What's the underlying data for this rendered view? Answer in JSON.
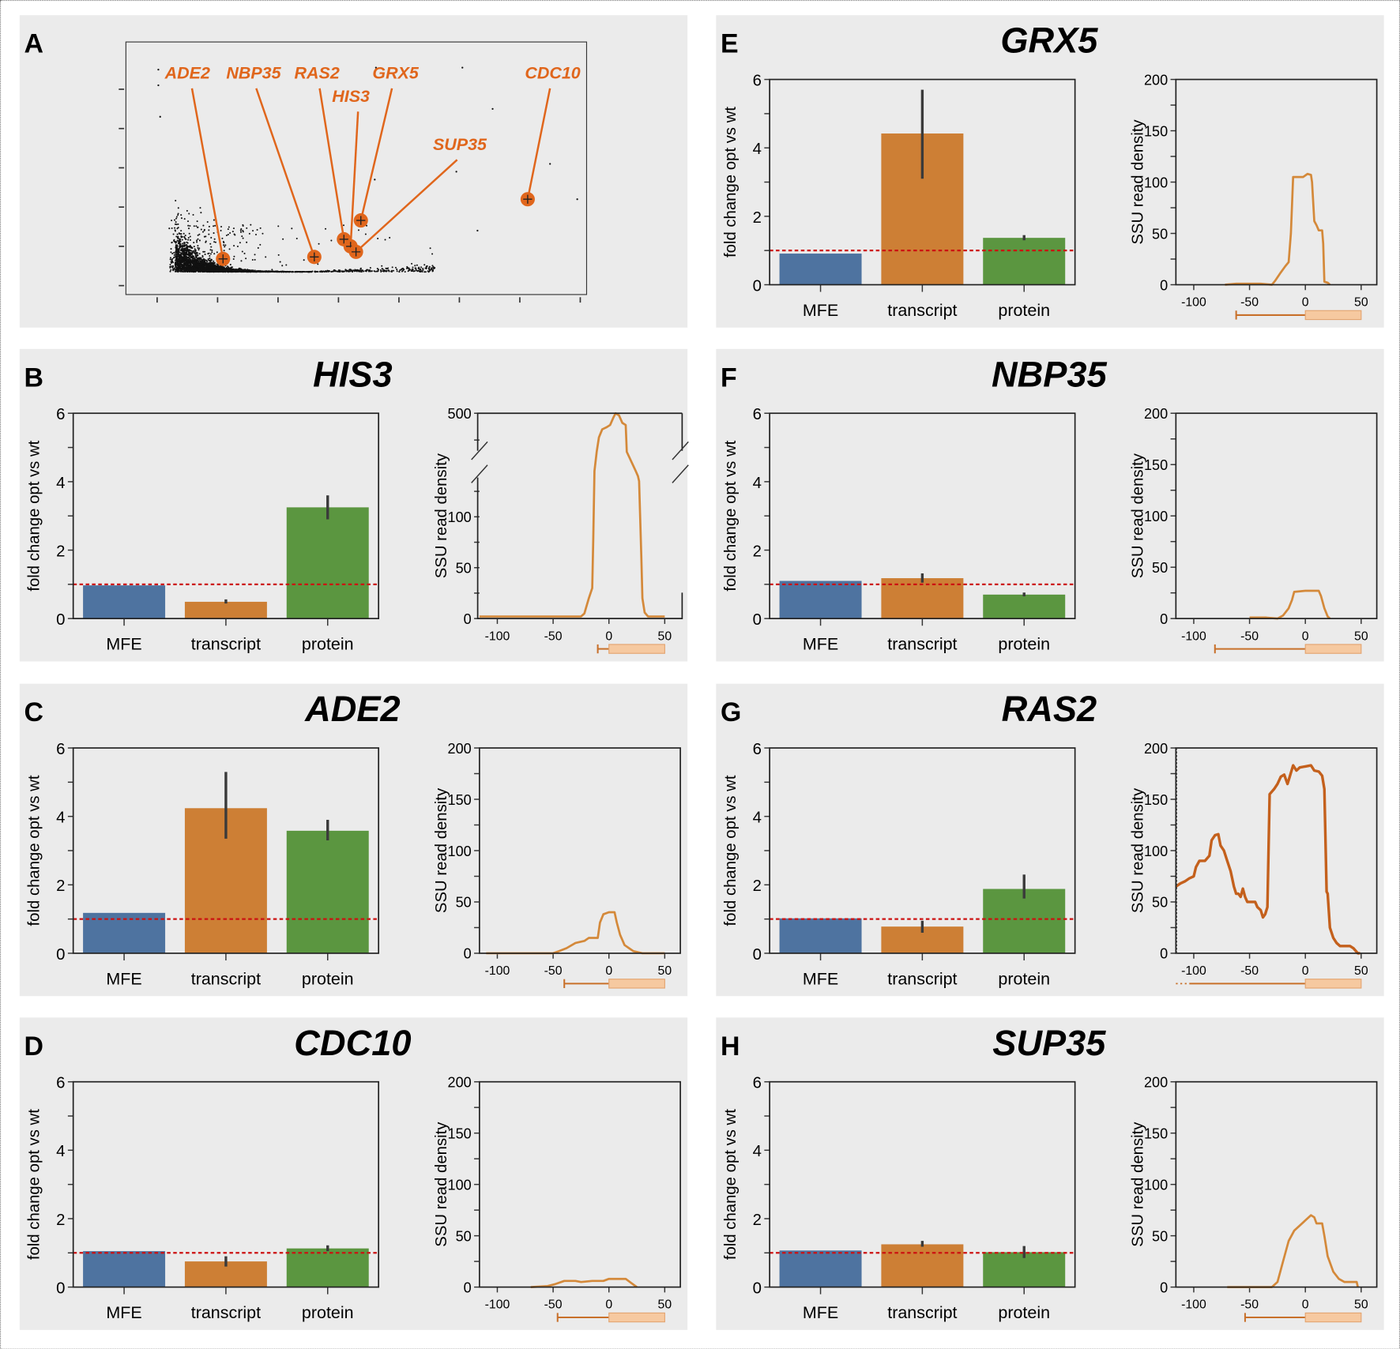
{
  "colors": {
    "panel_bg": "#ebebeb",
    "mfe": "#4e73a0",
    "transcript": "#cd7f35",
    "protein": "#5b9640",
    "reference_line": "#cc1111",
    "trace": "#d4893a",
    "trace_dark": "#c4601c",
    "highlight": "#e0661c",
    "gene_model_line": "#c8702a",
    "gene_model_box": "#f6c9a0"
  },
  "chart_data": [
    {
      "type": "scatter",
      "panel": "A",
      "grid": false,
      "tick_labels_shown": false,
      "highlighted_points": [
        {
          "label": "ADE2",
          "x": 1.09,
          "y": 0.68
        },
        {
          "label": "NBP35",
          "x": 2.6,
          "y": 0.73
        },
        {
          "label": "RAS2",
          "x": 3.09,
          "y": 1.18
        },
        {
          "label": "HIS3",
          "x": 3.2,
          "y": 1.0
        },
        {
          "label": "GRX5",
          "x": 3.37,
          "y": 1.66
        },
        {
          "label": "SUP35",
          "x": 3.29,
          "y": 0.86
        },
        {
          "label": "CDC10",
          "x": 6.13,
          "y": 2.2
        }
      ]
    },
    {
      "panel": "B",
      "title": "HIS3",
      "bar": {
        "type": "bar",
        "categories": [
          "MFE",
          "transcript",
          "protein"
        ],
        "values": [
          0.97,
          0.49,
          3.25
        ],
        "errors": [
          null,
          [
            0.44,
            0.56
          ],
          [
            2.9,
            3.6
          ]
        ],
        "ylabel": "fold change opt vs wt",
        "ylim": [
          0,
          6
        ],
        "yticks": [
          "0",
          "2",
          "4",
          "6"
        ],
        "reference_line": 1
      },
      "trace": {
        "type": "line",
        "ylabel": "SSU read density",
        "xlim": [
          -116,
          64
        ],
        "broken_axis": true,
        "ylim": [
          0,
          500
        ],
        "yticks": [
          "0",
          "50",
          "100",
          "500"
        ],
        "xticks": [
          "-100",
          "-50",
          "0",
          "50"
        ],
        "utr_start": -10,
        "cds": [
          0,
          50
        ],
        "points": [
          [
            -116,
            2
          ],
          [
            -25,
            2
          ],
          [
            -22,
            5
          ],
          [
            -18,
            20
          ],
          [
            -15,
            30
          ],
          [
            -14,
            80
          ],
          [
            -13,
            145
          ],
          [
            -11,
            428
          ],
          [
            -9,
            455
          ],
          [
            -6,
            470
          ],
          [
            -2,
            474
          ],
          [
            1,
            478
          ],
          [
            4,
            492
          ],
          [
            6,
            500
          ],
          [
            9,
            496
          ],
          [
            12,
            482
          ],
          [
            15,
            478
          ],
          [
            16,
            428
          ],
          [
            24,
            145
          ],
          [
            26,
            140
          ],
          [
            27,
            135
          ],
          [
            29,
            60
          ],
          [
            30,
            20
          ],
          [
            32,
            6
          ],
          [
            35,
            2
          ],
          [
            50,
            2
          ]
        ]
      }
    },
    {
      "panel": "C",
      "title": "ADE2",
      "bar": {
        "type": "bar",
        "categories": [
          "MFE",
          "transcript",
          "protein"
        ],
        "values": [
          1.18,
          4.24,
          3.58
        ],
        "errors": [
          null,
          [
            3.35,
            5.3
          ],
          [
            3.3,
            3.9
          ]
        ],
        "ylabel": "fold change opt vs wt",
        "ylim": [
          0,
          6
        ],
        "yticks": [
          "0",
          "2",
          "4",
          "6"
        ],
        "reference_line": 1
      },
      "trace": {
        "type": "line",
        "ylabel": "SSU read density",
        "xlim": [
          -116,
          64
        ],
        "ylim": [
          0,
          200
        ],
        "yticks": [
          "0",
          "50",
          "100",
          "150",
          "200"
        ],
        "xticks": [
          "-100",
          "-50",
          "0",
          "50"
        ],
        "utr_start": -40,
        "cds": [
          0,
          50
        ],
        "points": [
          [
            -110,
            0
          ],
          [
            -50,
            0
          ],
          [
            -45,
            2
          ],
          [
            -38,
            5
          ],
          [
            -30,
            10
          ],
          [
            -22,
            12
          ],
          [
            -18,
            15
          ],
          [
            -10,
            15
          ],
          [
            -8,
            30
          ],
          [
            -5,
            38
          ],
          [
            0,
            40
          ],
          [
            5,
            40
          ],
          [
            7,
            30
          ],
          [
            10,
            18
          ],
          [
            14,
            8
          ],
          [
            18,
            5
          ],
          [
            22,
            2
          ],
          [
            30,
            0
          ],
          [
            50,
            0
          ]
        ]
      }
    },
    {
      "panel": "D",
      "title": "CDC10",
      "bar": {
        "type": "bar",
        "categories": [
          "MFE",
          "transcript",
          "protein"
        ],
        "values": [
          1.05,
          0.75,
          1.13
        ],
        "errors": [
          null,
          [
            0.6,
            0.9
          ],
          [
            1.05,
            1.22
          ]
        ],
        "ylabel": "fold change opt vs wt",
        "ylim": [
          0,
          6
        ],
        "yticks": [
          "0",
          "2",
          "4",
          "6"
        ],
        "reference_line": 1
      },
      "trace": {
        "type": "line",
        "ylabel": "SSU read density",
        "xlim": [
          -116,
          64
        ],
        "ylim": [
          0,
          200
        ],
        "yticks": [
          "0",
          "50",
          "100",
          "150",
          "200"
        ],
        "xticks": [
          "-100",
          "-50",
          "0",
          "50"
        ],
        "utr_start": -46,
        "cds": [
          0,
          50
        ],
        "points": [
          [
            -70,
            0
          ],
          [
            -55,
            1
          ],
          [
            -48,
            3
          ],
          [
            -40,
            6
          ],
          [
            -30,
            6
          ],
          [
            -25,
            5
          ],
          [
            -15,
            6
          ],
          [
            -5,
            6
          ],
          [
            0,
            8
          ],
          [
            8,
            8
          ],
          [
            15,
            8
          ],
          [
            20,
            4
          ],
          [
            25,
            0
          ]
        ]
      }
    },
    {
      "panel": "E",
      "title": "GRX5",
      "bar": {
        "type": "bar",
        "categories": [
          "MFE",
          "transcript",
          "protein"
        ],
        "values": [
          0.91,
          4.42,
          1.37
        ],
        "errors": [
          null,
          [
            3.1,
            5.7
          ],
          [
            1.3,
            1.45
          ]
        ],
        "ylabel": "fold change opt vs wt",
        "ylim": [
          0,
          6
        ],
        "yticks": [
          "0",
          "2",
          "4",
          "6"
        ],
        "reference_line": 1
      },
      "trace": {
        "type": "line",
        "ylabel": "SSU read density",
        "xlim": [
          -116,
          64
        ],
        "ylim": [
          0,
          200
        ],
        "yticks": [
          "0",
          "50",
          "100",
          "150",
          "200"
        ],
        "xticks": [
          "-100",
          "-50",
          "0",
          "50"
        ],
        "utr_start": -62,
        "cds": [
          0,
          50
        ],
        "points": [
          [
            -72,
            0
          ],
          [
            -62,
            1
          ],
          [
            -40,
            1
          ],
          [
            -30,
            0
          ],
          [
            -27,
            4
          ],
          [
            -22,
            12
          ],
          [
            -18,
            18
          ],
          [
            -15,
            22
          ],
          [
            -13,
            50
          ],
          [
            -11,
            105
          ],
          [
            -2,
            105
          ],
          [
            2,
            108
          ],
          [
            5,
            107
          ],
          [
            6,
            100
          ],
          [
            8,
            62
          ],
          [
            10,
            58
          ],
          [
            12,
            53
          ],
          [
            15,
            53
          ],
          [
            16,
            40
          ],
          [
            17,
            3
          ],
          [
            20,
            2
          ],
          [
            22,
            0
          ]
        ]
      }
    },
    {
      "panel": "F",
      "title": "NBP35",
      "bar": {
        "type": "bar",
        "categories": [
          "MFE",
          "transcript",
          "protein"
        ],
        "values": [
          1.1,
          1.18,
          0.7
        ],
        "errors": [
          null,
          [
            1.05,
            1.32
          ],
          [
            0.65,
            0.76
          ]
        ],
        "ylabel": "fold change opt vs wt",
        "ylim": [
          0,
          6
        ],
        "yticks": [
          "0",
          "2",
          "4",
          "6"
        ],
        "reference_line": 1
      },
      "trace": {
        "type": "line",
        "ylabel": "SSU read density",
        "xlim": [
          -116,
          64
        ],
        "ylim": [
          0,
          200
        ],
        "yticks": [
          "0",
          "50",
          "100",
          "150",
          "200"
        ],
        "xticks": [
          "-100",
          "-50",
          "0",
          "50"
        ],
        "utr_start": -81,
        "cds": [
          0,
          50
        ],
        "points": [
          [
            -50,
            1
          ],
          [
            -35,
            1
          ],
          [
            -25,
            0
          ],
          [
            -20,
            3
          ],
          [
            -15,
            10
          ],
          [
            -12,
            18
          ],
          [
            -10,
            26
          ],
          [
            0,
            27
          ],
          [
            12,
            27
          ],
          [
            14,
            22
          ],
          [
            17,
            10
          ],
          [
            20,
            2
          ],
          [
            22,
            0
          ]
        ]
      }
    },
    {
      "panel": "G",
      "title": "RAS2",
      "bar": {
        "type": "bar",
        "categories": [
          "MFE",
          "transcript",
          "protein"
        ],
        "values": [
          1.02,
          0.78,
          1.88
        ],
        "errors": [
          null,
          [
            0.6,
            0.95
          ],
          [
            1.6,
            2.3
          ]
        ],
        "ylabel": "fold change opt vs wt",
        "ylim": [
          0,
          6
        ],
        "yticks": [
          "0",
          "2",
          "4",
          "6"
        ],
        "reference_line": 1
      },
      "trace": {
        "type": "line",
        "ylabel": "SSU read density",
        "xlim": [
          -116,
          64
        ],
        "ylim": [
          0,
          200
        ],
        "yticks": [
          "0",
          "50",
          "100",
          "150",
          "200"
        ],
        "xticks": [
          "-100",
          "-50",
          "0",
          "50"
        ],
        "utr_start": -104,
        "utr_dotted_start": -116,
        "cds": [
          0,
          50
        ],
        "dark": true,
        "points": [
          [
            -116,
            65
          ],
          [
            -112,
            68
          ],
          [
            -108,
            70
          ],
          [
            -104,
            73
          ],
          [
            -100,
            75
          ],
          [
            -98,
            84
          ],
          [
            -95,
            90
          ],
          [
            -90,
            90
          ],
          [
            -86,
            95
          ],
          [
            -84,
            110
          ],
          [
            -81,
            115
          ],
          [
            -78,
            116
          ],
          [
            -76,
            105
          ],
          [
            -73,
            100
          ],
          [
            -70,
            90
          ],
          [
            -67,
            80
          ],
          [
            -64,
            65
          ],
          [
            -62,
            58
          ],
          [
            -60,
            58
          ],
          [
            -58,
            55
          ],
          [
            -56,
            63
          ],
          [
            -54,
            55
          ],
          [
            -52,
            50
          ],
          [
            -45,
            50
          ],
          [
            -43,
            45
          ],
          [
            -40,
            42
          ],
          [
            -38,
            35
          ],
          [
            -36,
            38
          ],
          [
            -34,
            45
          ],
          [
            -32,
            155
          ],
          [
            -28,
            160
          ],
          [
            -25,
            165
          ],
          [
            -22,
            172
          ],
          [
            -19,
            174
          ],
          [
            -16,
            165
          ],
          [
            -14,
            172
          ],
          [
            -11,
            183
          ],
          [
            -8,
            178
          ],
          [
            -5,
            181
          ],
          [
            0,
            182
          ],
          [
            5,
            183
          ],
          [
            8,
            178
          ],
          [
            12,
            177
          ],
          [
            15,
            173
          ],
          [
            17,
            160
          ],
          [
            19,
            60
          ],
          [
            20,
            58
          ],
          [
            22,
            25
          ],
          [
            25,
            15
          ],
          [
            28,
            10
          ],
          [
            31,
            7
          ],
          [
            40,
            7
          ],
          [
            43,
            5
          ],
          [
            47,
            0
          ],
          [
            49,
            0
          ]
        ]
      }
    },
    {
      "panel": "H",
      "title": "SUP35",
      "bar": {
        "type": "bar",
        "categories": [
          "MFE",
          "transcript",
          "protein"
        ],
        "values": [
          1.07,
          1.25,
          1.02
        ],
        "errors": [
          null,
          [
            1.18,
            1.35
          ],
          [
            0.85,
            1.2
          ]
        ],
        "ylabel": "fold change opt vs wt",
        "ylim": [
          0,
          6
        ],
        "yticks": [
          "0",
          "2",
          "4",
          "6"
        ],
        "reference_line": 1
      },
      "trace": {
        "type": "line",
        "ylabel": "SSU read density",
        "xlim": [
          -116,
          64
        ],
        "ylim": [
          0,
          200
        ],
        "yticks": [
          "0",
          "50",
          "100",
          "150",
          "200"
        ],
        "xticks": [
          "-100",
          "-50",
          "0",
          "50"
        ],
        "utr_start": -54,
        "cds": [
          0,
          50
        ],
        "points": [
          [
            -70,
            0
          ],
          [
            -30,
            0
          ],
          [
            -25,
            5
          ],
          [
            -20,
            25
          ],
          [
            -15,
            45
          ],
          [
            -10,
            55
          ],
          [
            -5,
            60
          ],
          [
            0,
            65
          ],
          [
            5,
            70
          ],
          [
            8,
            68
          ],
          [
            10,
            62
          ],
          [
            15,
            62
          ],
          [
            17,
            50
          ],
          [
            20,
            30
          ],
          [
            25,
            15
          ],
          [
            30,
            8
          ],
          [
            35,
            5
          ],
          [
            46,
            5
          ],
          [
            47,
            0
          ]
        ]
      }
    }
  ]
}
